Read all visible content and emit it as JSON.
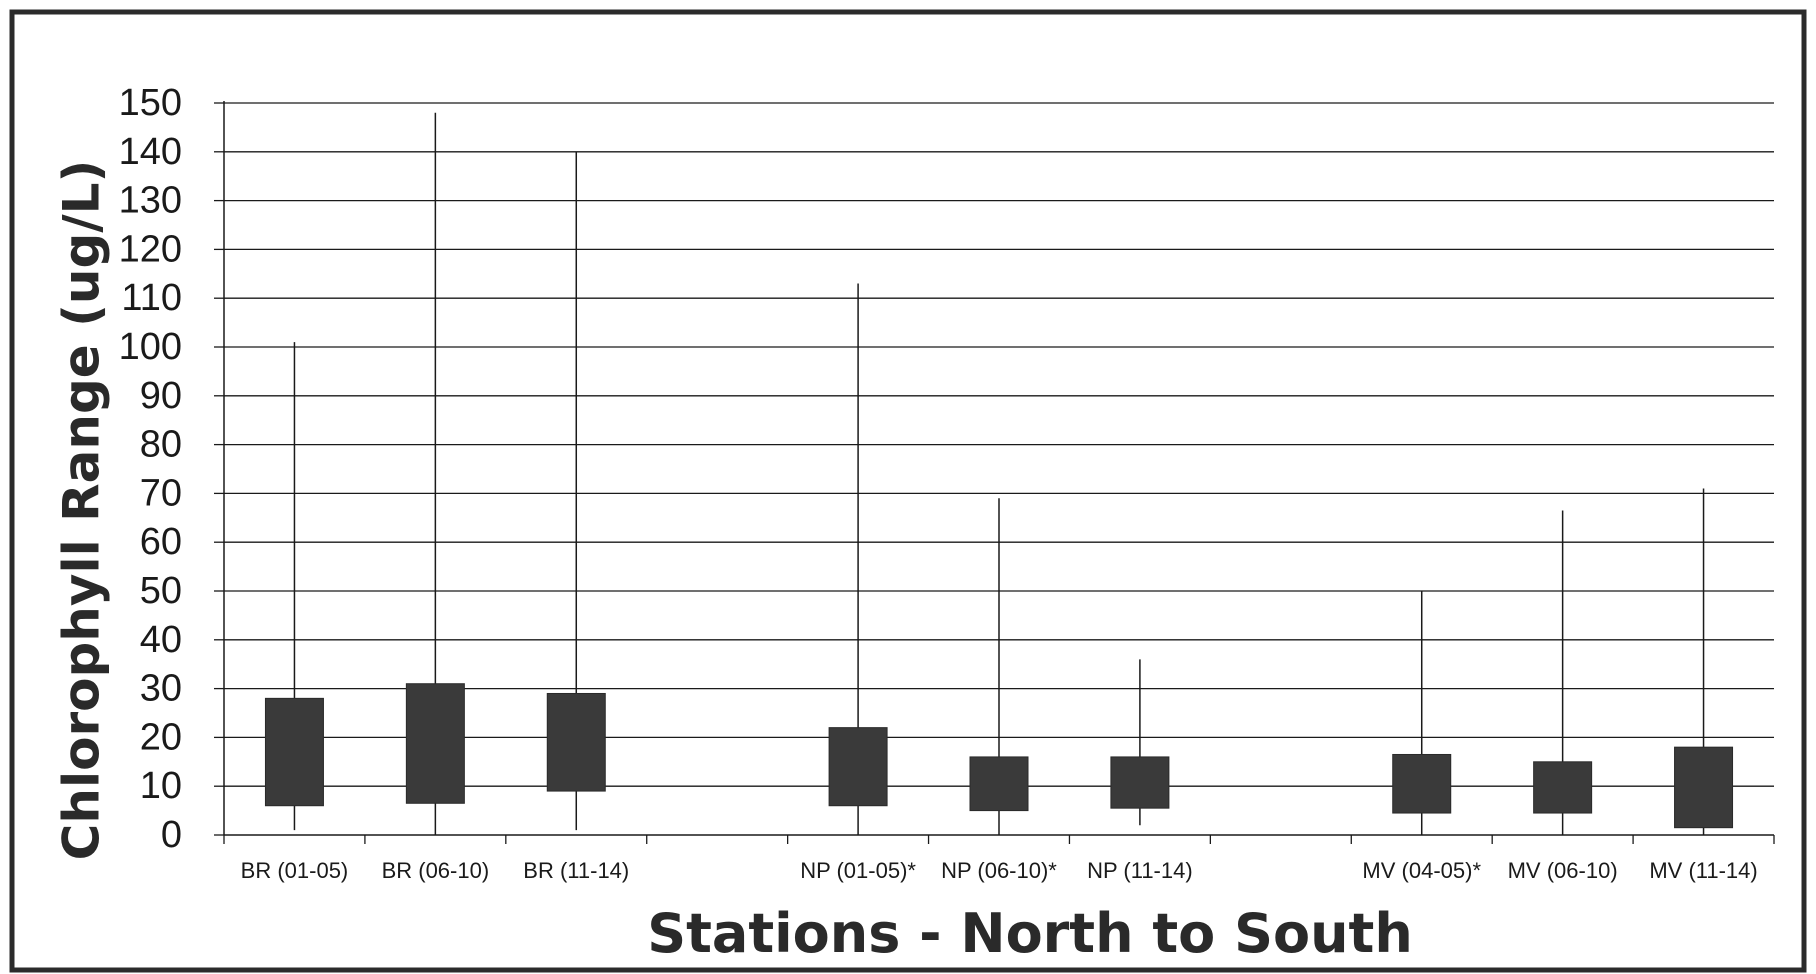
{
  "chart_data": {
    "type": "box",
    "title": "",
    "xlabel": "Stations - North to South",
    "ylabel": "Chlorophyll Range (ug/L)",
    "ylim": [
      0,
      150
    ],
    "yticks": [
      0,
      10,
      20,
      30,
      40,
      50,
      60,
      70,
      80,
      90,
      100,
      110,
      120,
      130,
      140,
      150
    ],
    "grid": true,
    "legend": "none",
    "category_slots": 11,
    "categories": [
      {
        "label": "BR (01-05)",
        "slot": 0,
        "min": 1,
        "q1": 6,
        "q3": 28,
        "max": 101
      },
      {
        "label": "BR (06-10)",
        "slot": 1,
        "min": 0,
        "q1": 6.5,
        "q3": 31,
        "max": 148
      },
      {
        "label": "BR (11-14)",
        "slot": 2,
        "min": 1,
        "q1": 9,
        "q3": 29,
        "max": 140
      },
      {
        "label": "NP (01-05)*",
        "slot": 4,
        "min": 0,
        "q1": 6,
        "q3": 22,
        "max": 113
      },
      {
        "label": "NP (06-10)*",
        "slot": 5,
        "min": 0,
        "q1": 5,
        "q3": 16,
        "max": 69
      },
      {
        "label": "NP (11-14)",
        "slot": 6,
        "min": 2,
        "q1": 5.5,
        "q3": 16,
        "max": 36
      },
      {
        "label": "MV (04-05)*",
        "slot": 8,
        "min": 0,
        "q1": 4.5,
        "q3": 16.5,
        "max": 50
      },
      {
        "label": "MV (06-10)",
        "slot": 9,
        "min": 0,
        "q1": 4.5,
        "q3": 15,
        "max": 66.5
      },
      {
        "label": "MV (11-14)",
        "slot": 10,
        "min": 0,
        "q1": 1.5,
        "q3": 18,
        "max": 71
      }
    ],
    "colors": {
      "box": "#3a3a3a",
      "line": "#1a1a1a"
    }
  }
}
